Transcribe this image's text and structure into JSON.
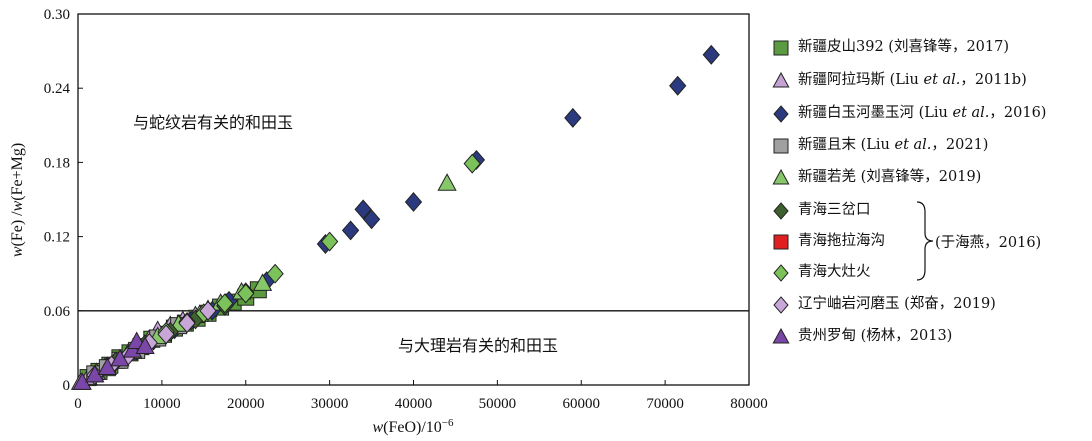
{
  "chart_data": {
    "type": "scatter",
    "xlabel": "w(FeO)/10⁻⁶",
    "ylabel": "w(Fe)/w(Fe+Mg)",
    "xlim": [
      0,
      80000
    ],
    "ylim": [
      0,
      0.3
    ],
    "x_ticks": [
      "0",
      "10000",
      "20000",
      "30000",
      "40000",
      "50000",
      "60000",
      "70000",
      "80000"
    ],
    "y_ticks": [
      "0",
      "0.06",
      "0.12",
      "0.18",
      "0.24",
      "0.30"
    ],
    "reference_line": {
      "y": 0.06
    },
    "annotations": [
      "与蛇纹岩有关的和田玉",
      "与大理岩有关的和田玉"
    ],
    "brace_label": "(于海燕，2016)",
    "legend_location": "right",
    "series": [
      {
        "name": "新疆皮山392 (刘喜锋等，2017)",
        "marker": "square",
        "color": "#5b9a3e",
        "points": [
          [
            1200,
            0.006
          ],
          [
            2500,
            0.011
          ],
          [
            3800,
            0.016
          ],
          [
            5000,
            0.022
          ],
          [
            6200,
            0.026
          ],
          [
            7500,
            0.031
          ],
          [
            8800,
            0.037
          ],
          [
            10200,
            0.041
          ],
          [
            11500,
            0.046
          ],
          [
            12800,
            0.05
          ],
          [
            14200,
            0.054
          ],
          [
            15500,
            0.058
          ],
          [
            17000,
            0.063
          ],
          [
            18500,
            0.067
          ],
          [
            20000,
            0.071
          ],
          [
            21500,
            0.077
          ]
        ]
      },
      {
        "name": "新疆阿拉玛斯 (Liu et al.，2011b)",
        "marker": "triangle",
        "color": "#c4a3d4",
        "points": [
          [
            300,
            0.002
          ],
          [
            1200,
            0.006
          ],
          [
            2200,
            0.01
          ],
          [
            3200,
            0.014
          ],
          [
            4500,
            0.019
          ],
          [
            6000,
            0.026
          ],
          [
            7200,
            0.031
          ],
          [
            8500,
            0.037
          ],
          [
            9500,
            0.044
          ],
          [
            11000,
            0.048
          ],
          [
            12500,
            0.052
          ],
          [
            14000,
            0.056
          ],
          [
            15500,
            0.061
          ]
        ]
      },
      {
        "name": "新疆白玉河墨玉河 (Liu et al.，2016)",
        "marker": "diamond",
        "color": "#2b3a7e",
        "points": [
          [
            3500,
            0.015
          ],
          [
            6000,
            0.024
          ],
          [
            9000,
            0.036
          ],
          [
            11500,
            0.045
          ],
          [
            13500,
            0.052
          ],
          [
            16000,
            0.06
          ],
          [
            18000,
            0.068
          ],
          [
            20000,
            0.075
          ],
          [
            22500,
            0.084
          ],
          [
            29500,
            0.114
          ],
          [
            32500,
            0.125
          ],
          [
            34000,
            0.142
          ],
          [
            35000,
            0.134
          ],
          [
            40000,
            0.148
          ],
          [
            47500,
            0.182
          ],
          [
            59000,
            0.216
          ],
          [
            71500,
            0.242
          ],
          [
            75500,
            0.267
          ]
        ]
      },
      {
        "name": "新疆且末 (Liu et al.，2021)",
        "marker": "square",
        "color": "#a0a0a0",
        "points": [
          [
            2000,
            0.009
          ],
          [
            3500,
            0.014
          ],
          [
            5000,
            0.02
          ],
          [
            7000,
            0.028
          ],
          [
            9500,
            0.038
          ],
          [
            12000,
            0.048
          ]
        ]
      },
      {
        "name": "新疆若羌 (刘喜锋等，2019)",
        "marker": "triangle",
        "color": "#86c76a",
        "points": [
          [
            6500,
            0.027
          ],
          [
            9500,
            0.039
          ],
          [
            12000,
            0.049
          ],
          [
            14500,
            0.057
          ],
          [
            17000,
            0.066
          ],
          [
            19500,
            0.075
          ],
          [
            22000,
            0.082
          ],
          [
            44000,
            0.163
          ]
        ]
      },
      {
        "name": "青海三岔口",
        "marker": "diamond",
        "color": "#3e5f2e",
        "points": [
          [
            4500,
            0.019
          ],
          [
            8000,
            0.033
          ],
          [
            11000,
            0.043
          ],
          [
            14000,
            0.053
          ],
          [
            17500,
            0.064
          ]
        ]
      },
      {
        "name": "青海拖拉海沟",
        "marker": "square",
        "color": "#e02020",
        "points": []
      },
      {
        "name": "青海大灶火",
        "marker": "diamond",
        "color": "#7cc25a",
        "points": [
          [
            10500,
            0.043
          ],
          [
            13000,
            0.051
          ],
          [
            15000,
            0.058
          ],
          [
            17500,
            0.066
          ],
          [
            20000,
            0.074
          ],
          [
            23500,
            0.09
          ],
          [
            30000,
            0.116
          ],
          [
            47000,
            0.179
          ]
        ]
      },
      {
        "name": "辽宁岫岩河磨玉 (郑奋，2019)",
        "marker": "diamond",
        "color": "#c8a6d8",
        "points": [
          [
            2000,
            0.008
          ],
          [
            4000,
            0.016
          ],
          [
            6000,
            0.024
          ],
          [
            8500,
            0.034
          ],
          [
            10500,
            0.041
          ],
          [
            13000,
            0.05
          ],
          [
            15500,
            0.06
          ]
        ]
      },
      {
        "name": "贵州罗甸 (杨林，2013)",
        "marker": "triangle",
        "color": "#7a46a8",
        "points": [
          [
            500,
            0.002
          ],
          [
            2000,
            0.008
          ],
          [
            3500,
            0.014
          ],
          [
            5000,
            0.021
          ],
          [
            6500,
            0.028
          ],
          [
            7000,
            0.035
          ],
          [
            8000,
            0.031
          ]
        ]
      }
    ]
  }
}
